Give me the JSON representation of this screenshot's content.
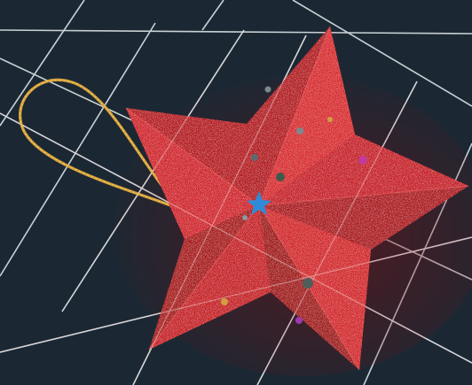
{
  "scene": {
    "background_color": "#1b2833",
    "grid_line_color": "#e8eef2",
    "ornament": {
      "shape": "five-pointed star",
      "color": "#c41e24",
      "highlight_color": "#e23a3a",
      "shadow_color": "#7d0d12",
      "texture": "glitter",
      "hanging_loop_color": "#d9a43c",
      "sequin_colors": [
        "#2f8ad8",
        "#c23a9a",
        "#d0a040",
        "#7a8a8f"
      ]
    }
  }
}
